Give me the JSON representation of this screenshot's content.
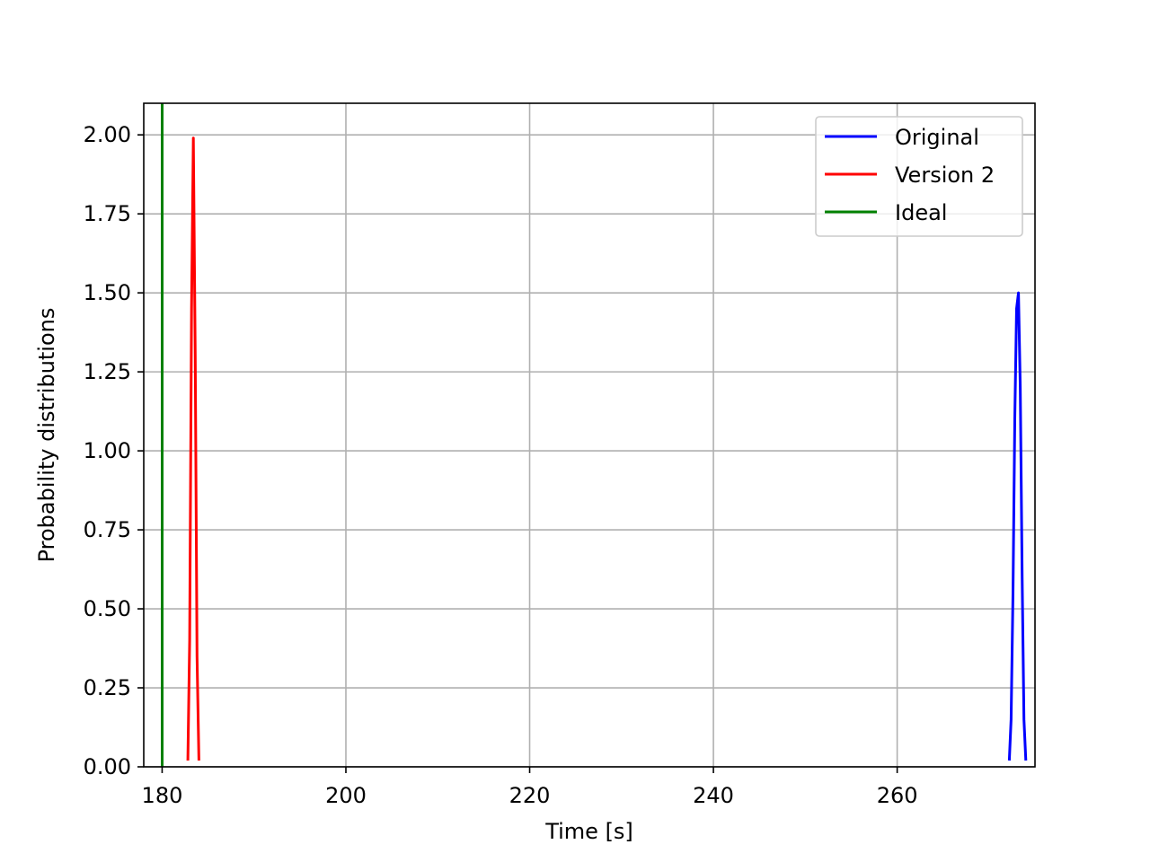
{
  "chart_data": {
    "type": "line",
    "title": "",
    "xlabel": "Time [s]",
    "ylabel": "Probability distributions",
    "xlim": [
      178,
      275
    ],
    "ylim": [
      0,
      2.1
    ],
    "xticks": [
      180,
      200,
      220,
      240,
      260
    ],
    "xtick_labels": [
      "180",
      "200",
      "220",
      "240",
      "260"
    ],
    "yticks": [
      0,
      0.25,
      0.5,
      0.75,
      1.0,
      1.25,
      1.5,
      1.75,
      2.0
    ],
    "ytick_labels": [
      "0.00",
      "0.25",
      "0.50",
      "0.75",
      "1.00",
      "1.25",
      "1.50",
      "1.75",
      "2.00"
    ],
    "grid": true,
    "legend_position": "top-right",
    "series": [
      {
        "name": "Original",
        "color": "#0000ff",
        "x": [
          272.2,
          272.4,
          272.6,
          272.8,
          273.0,
          273.2,
          273.4,
          273.6,
          273.8,
          274.0
        ],
        "y": [
          0.02,
          0.15,
          0.55,
          1.1,
          1.45,
          1.5,
          1.2,
          0.6,
          0.15,
          0.02
        ]
      },
      {
        "name": "Version 2",
        "color": "#ff0000",
        "x": [
          182.8,
          183.0,
          183.2,
          183.4,
          183.6,
          183.8,
          184.0
        ],
        "y": [
          0.02,
          0.4,
          1.45,
          1.99,
          1.3,
          0.35,
          0.02
        ]
      },
      {
        "name": "Ideal",
        "color": "#008000",
        "x": [
          180,
          180
        ],
        "y": [
          0,
          2.1
        ]
      }
    ]
  }
}
